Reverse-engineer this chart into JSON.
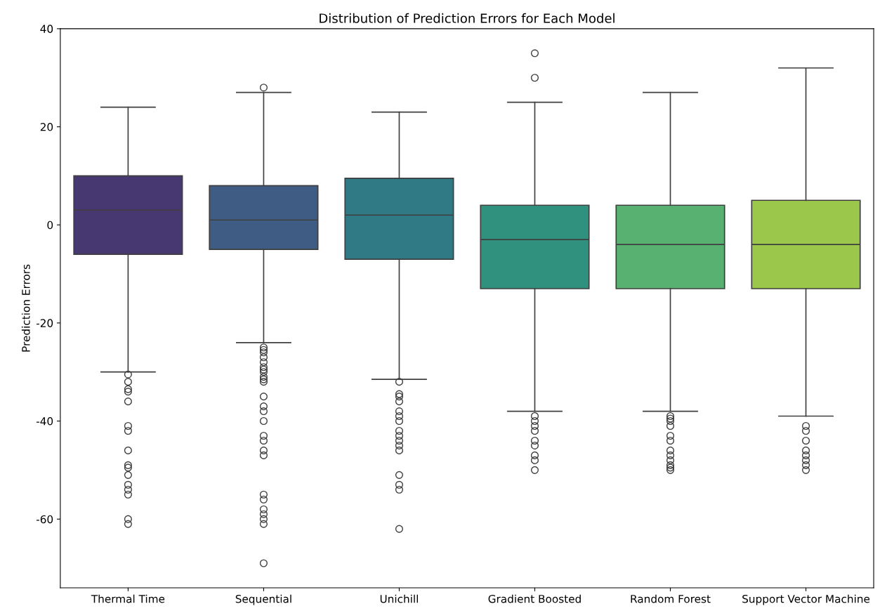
{
  "chart_data": {
    "type": "box",
    "title": "Distribution of Prediction Errors for Each Model",
    "ylabel": "Prediction Errors",
    "categories": [
      "Thermal Time",
      "Sequential",
      "Unichill",
      "Gradient Boosted",
      "Random Forest",
      "Support Vector Machine"
    ],
    "colors": [
      "#483872",
      "#3e5c84",
      "#2f7a84",
      "#2f917e",
      "#58b171",
      "#9bc74b"
    ],
    "boxes": [
      {
        "low": -30,
        "q1": -6,
        "median": 3,
        "q3": 10,
        "high": 24,
        "outliers": [
          -30.5,
          -32,
          -33.5,
          -34,
          -36,
          -41,
          -42,
          -46,
          -49,
          -49.5,
          -51,
          -53,
          -54,
          -55,
          -60,
          -61
        ]
      },
      {
        "low": -24,
        "q1": -5,
        "median": 1,
        "q3": 8,
        "high": 27,
        "outliers": [
          28,
          -25,
          -25.5,
          -26,
          -27,
          -28,
          -29,
          -29.5,
          -30,
          -31,
          -31.5,
          -32,
          -35,
          -37,
          -38,
          -40,
          -43,
          -44,
          -46,
          -47,
          -55,
          -56,
          -58,
          -59,
          -60,
          -61,
          -69
        ]
      },
      {
        "low": -31.5,
        "q1": -7,
        "median": 2,
        "q3": 9.5,
        "high": 23,
        "outliers": [
          -32,
          -34.5,
          -35,
          -36,
          -38,
          -39,
          -40,
          -42,
          -43,
          -44,
          -45,
          -46,
          -51,
          -53,
          -54,
          -62
        ]
      },
      {
        "low": -38,
        "q1": -13,
        "median": -3,
        "q3": 4,
        "high": 25,
        "outliers": [
          35,
          30,
          -39,
          -40,
          -41,
          -42,
          -44,
          -45,
          -47,
          -48,
          -50
        ]
      },
      {
        "low": -38,
        "q1": -13,
        "median": -4,
        "q3": 4,
        "high": 27,
        "outliers": [
          -39,
          -39.5,
          -40,
          -41,
          -43,
          -44,
          -46,
          -47,
          -48,
          -49,
          -49.5,
          -50
        ]
      },
      {
        "low": -39,
        "q1": -13,
        "median": -4,
        "q3": 5,
        "high": 32,
        "outliers": [
          -41,
          -42,
          -44,
          -46,
          -47,
          -48,
          -49,
          -50
        ]
      }
    ],
    "ylim": [
      -74,
      40
    ],
    "yticks": [
      -60,
      -40,
      -20,
      0,
      20,
      40
    ],
    "grid": false,
    "legend": false
  }
}
